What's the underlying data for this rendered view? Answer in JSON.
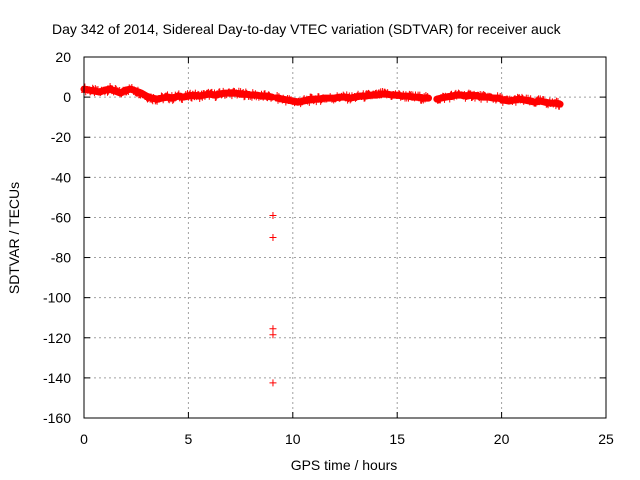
{
  "chart_data": {
    "type": "scatter",
    "title": "Day 342 of 2014, Sidereal Day-to-day VTEC variation (SDTVAR) for receiver auck",
    "xlabel": "GPS time / hours",
    "ylabel": "SDTVAR / TECUs",
    "xlim": [
      0,
      25
    ],
    "ylim": [
      -160,
      20
    ],
    "x_ticks": [
      0,
      5,
      10,
      15,
      20,
      25
    ],
    "y_ticks": [
      20,
      0,
      -20,
      -40,
      -60,
      -80,
      -100,
      -120,
      -140,
      -160
    ],
    "x_tick_labels": [
      "0",
      "5",
      "10",
      "15",
      "20",
      "25"
    ],
    "y_tick_labels": [
      "20",
      "0",
      "-20",
      "-40",
      "-60",
      "-80",
      "-100",
      "-120",
      "-140",
      "-160"
    ],
    "grid": true,
    "marker": "plus",
    "series": [
      {
        "name": "SDTVAR",
        "color": "#ff0000",
        "segments": [
          {
            "x": [
              0.0,
              0.25,
              0.5,
              0.75,
              1.0,
              1.25,
              1.5,
              1.75,
              2.0,
              2.25,
              2.5,
              2.75,
              3.0,
              3.25,
              3.5
            ],
            "y": [
              4.0,
              3.5,
              3.0,
              2.5,
              3.5,
              4.0,
              3.0,
              2.0,
              3.5,
              4.0,
              3.0,
              2.0,
              0.5,
              -0.5,
              -1.0
            ]
          },
          {
            "x": [
              3.5,
              3.75,
              4.0,
              4.25,
              4.5,
              4.75,
              5.0,
              5.25,
              5.5,
              5.75,
              6.0,
              6.25,
              6.5,
              6.75,
              7.0,
              7.25,
              7.5,
              7.75,
              8.0,
              8.25,
              8.5,
              8.75,
              9.0
            ],
            "y": [
              -1.0,
              -0.5,
              0.0,
              -0.5,
              0.5,
              0.0,
              0.5,
              1.0,
              0.5,
              1.0,
              1.5,
              1.0,
              1.5,
              2.0,
              2.0,
              2.0,
              1.5,
              1.5,
              1.0,
              1.0,
              0.5,
              0.5,
              0.0
            ]
          },
          {
            "x": [
              9.25,
              9.5,
              9.75,
              10.0,
              10.25,
              10.5,
              10.75,
              11.0,
              11.25,
              11.5,
              11.75,
              12.0,
              12.25,
              12.5,
              12.75,
              13.0,
              13.25,
              13.5,
              13.75,
              14.0,
              14.25,
              14.5,
              14.75,
              15.0,
              15.25,
              15.5,
              15.75,
              16.0,
              16.25,
              16.5
            ],
            "y": [
              -0.5,
              -1.0,
              -1.5,
              -2.0,
              -2.5,
              -2.0,
              -1.5,
              -1.0,
              -1.0,
              -0.5,
              -0.5,
              -0.5,
              0.0,
              0.0,
              -0.5,
              0.0,
              0.5,
              0.5,
              1.0,
              1.0,
              1.5,
              1.5,
              1.0,
              1.0,
              0.5,
              0.5,
              0.0,
              0.0,
              -0.5,
              -0.5
            ]
          },
          {
            "x": [
              16.9,
              17.1,
              17.35,
              17.6,
              17.85,
              18.1,
              18.35,
              18.6,
              18.85,
              19.1,
              19.35,
              19.6,
              19.85,
              20.1,
              20.35,
              20.6,
              20.85,
              21.1,
              21.35,
              21.6,
              21.85,
              22.1,
              22.35,
              22.6,
              22.8
            ],
            "y": [
              -1.0,
              -0.5,
              0.0,
              0.5,
              1.0,
              1.0,
              0.5,
              1.0,
              0.5,
              0.0,
              0.0,
              -0.5,
              -0.5,
              -1.5,
              -2.0,
              -1.5,
              -1.0,
              -1.5,
              -2.0,
              -2.5,
              -2.0,
              -2.5,
              -3.0,
              -3.0,
              -3.5
            ]
          }
        ],
        "outliers": {
          "x": [
            9.05,
            9.05,
            9.05,
            9.05,
            9.05
          ],
          "y": [
            -59.0,
            -70.0,
            -115.5,
            -118.5,
            -142.5
          ]
        }
      }
    ]
  }
}
